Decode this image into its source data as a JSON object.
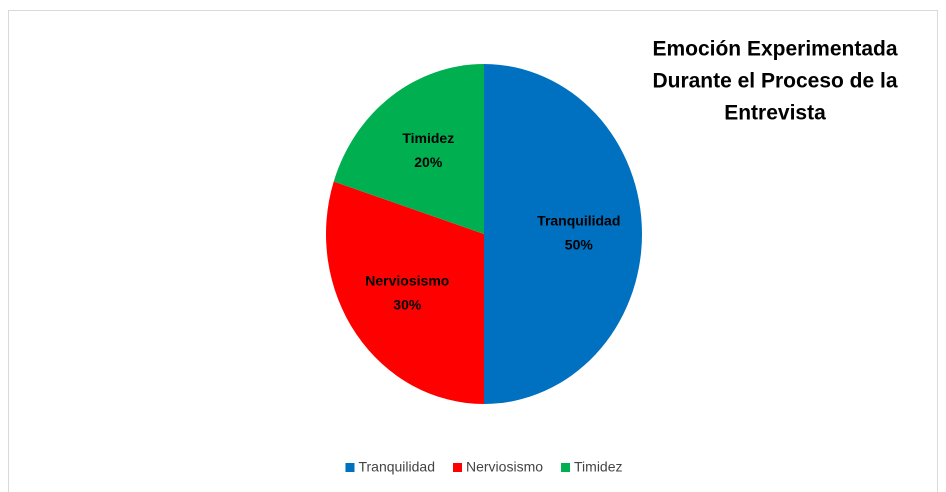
{
  "chart_data": {
    "type": "pie",
    "title": [
      "Emoción Experimentada",
      "Durante el Proceso de la",
      "Entrevista"
    ],
    "categories": [
      "Tranquilidad",
      "Nerviosismo",
      "Timidez"
    ],
    "values": [
      50,
      30,
      20
    ],
    "value_labels": [
      "50%",
      "30%",
      "20%"
    ],
    "colors": [
      "#0070c0",
      "#ff0000",
      "#00b050"
    ],
    "legend": "bottom"
  }
}
